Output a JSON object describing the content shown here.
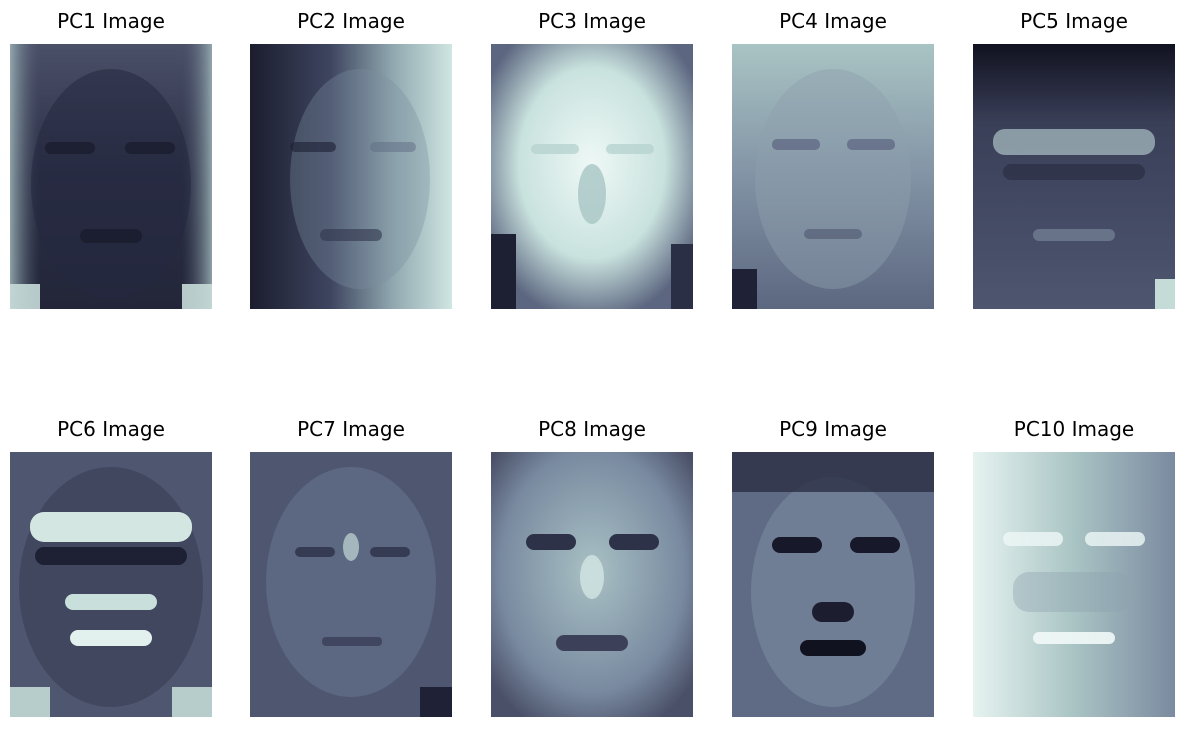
{
  "figure": {
    "panels": [
      {
        "title": "PC1 Image",
        "variant": "pc1"
      },
      {
        "title": "PC2 Image",
        "variant": "pc2"
      },
      {
        "title": "PC3 Image",
        "variant": "pc3"
      },
      {
        "title": "PC4 Image",
        "variant": "pc4"
      },
      {
        "title": "PC5 Image",
        "variant": "pc5"
      },
      {
        "title": "PC6 Image",
        "variant": "pc6"
      },
      {
        "title": "PC7 Image",
        "variant": "pc7"
      },
      {
        "title": "PC8 Image",
        "variant": "pc8"
      },
      {
        "title": "PC9 Image",
        "variant": "pc9"
      },
      {
        "title": "PC10 Image",
        "variant": "pc10"
      }
    ],
    "colormap": {
      "dark": "#1c1f33",
      "mid": "#7d8aa2",
      "light": "#e8f5f3"
    }
  }
}
